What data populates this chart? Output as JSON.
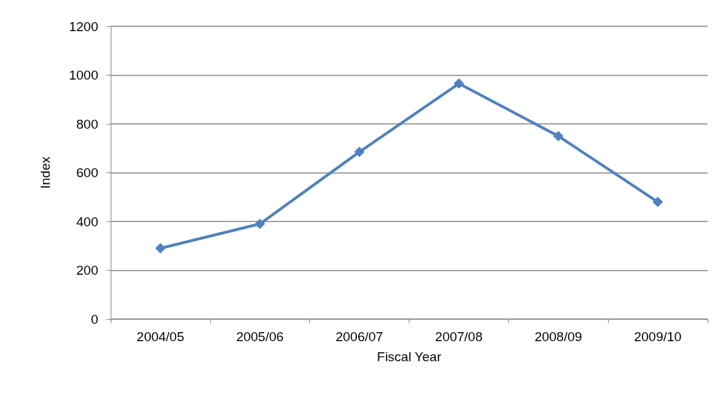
{
  "chart_data": {
    "type": "line",
    "xlabel": "Fiscal Year",
    "ylabel": "Index",
    "categories": [
      "2004/05",
      "2005/06",
      "2006/07",
      "2007/08",
      "2008/09",
      "2009/10"
    ],
    "series": [
      {
        "color": "#4f81bd",
        "values": [
          290,
          390,
          685,
          965,
          750,
          480
        ]
      }
    ],
    "ylim": [
      0,
      1200
    ],
    "yticks": [
      0,
      200,
      400,
      600,
      800,
      1000,
      1200
    ],
    "grid": "y",
    "marker": "diamond",
    "line_style": "solid"
  }
}
